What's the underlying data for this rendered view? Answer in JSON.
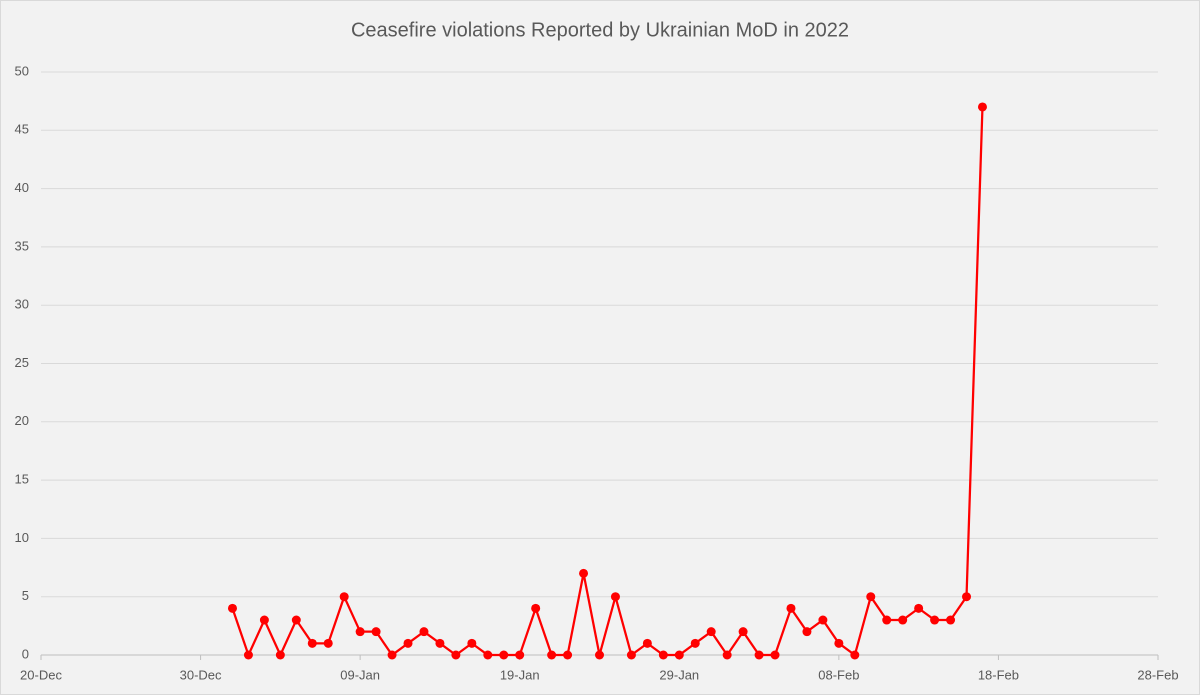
{
  "chart_data": {
    "type": "line",
    "title": "Ceasefire violations Reported by Ukrainian MoD in 2022",
    "x": [
      "01-Jan",
      "02-Jan",
      "03-Jan",
      "04-Jan",
      "05-Jan",
      "06-Jan",
      "07-Jan",
      "08-Jan",
      "09-Jan",
      "10-Jan",
      "11-Jan",
      "12-Jan",
      "13-Jan",
      "14-Jan",
      "15-Jan",
      "16-Jan",
      "17-Jan",
      "18-Jan",
      "19-Jan",
      "20-Jan",
      "21-Jan",
      "22-Jan",
      "23-Jan",
      "24-Jan",
      "25-Jan",
      "26-Jan",
      "27-Jan",
      "28-Jan",
      "29-Jan",
      "30-Jan",
      "31-Jan",
      "01-Feb",
      "02-Feb",
      "03-Feb",
      "04-Feb",
      "05-Feb",
      "06-Feb",
      "07-Feb",
      "08-Feb",
      "09-Feb",
      "10-Feb",
      "11-Feb",
      "12-Feb",
      "13-Feb",
      "14-Feb",
      "15-Feb",
      "16-Feb",
      "17-Feb"
    ],
    "series": [
      {
        "color": "#ff0000",
        "values": [
          4,
          0,
          3,
          0,
          3,
          1,
          1,
          5,
          2,
          2,
          0,
          1,
          2,
          1,
          0,
          1,
          0,
          0,
          0,
          4,
          0,
          0,
          7,
          0,
          5,
          0,
          1,
          0,
          0,
          1,
          2,
          0,
          2,
          0,
          0,
          4,
          2,
          3,
          1,
          0,
          5,
          3,
          3,
          4,
          3,
          3,
          5,
          47
        ]
      }
    ],
    "xlim": [
      "20-Dec",
      "28-Feb"
    ],
    "xticks": [
      "20-Dec",
      "30-Dec",
      "09-Jan",
      "19-Jan",
      "29-Jan",
      "08-Feb",
      "18-Feb",
      "28-Feb"
    ],
    "ylim": [
      0,
      50
    ],
    "yticks": [
      0,
      5,
      10,
      15,
      20,
      25,
      30,
      35,
      40,
      45,
      50
    ],
    "grid": true
  }
}
